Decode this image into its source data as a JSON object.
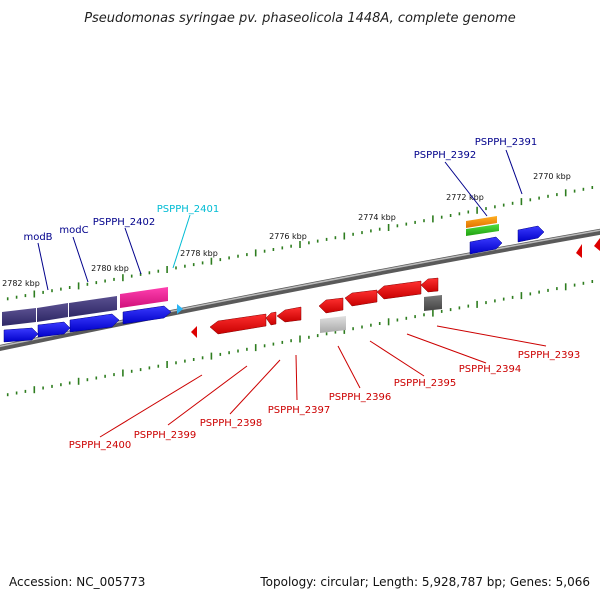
{
  "title": "Pseudomonas syringae pv. phaseolicola 1448A, complete genome",
  "footer": {
    "accession": "Accession: NC_005773",
    "summary": "Topology: circular; Length: 5,928,787 bp; Genes: 5,066"
  },
  "tick_labels": [
    "2770 kbp",
    "2772 kbp",
    "2774 kbp",
    "2776 kbp",
    "2778 kbp",
    "2780 kbp",
    "2782 kbp"
  ],
  "forward_labels": [
    "PSPPH_2391",
    "PSPPH_2392",
    "PSPPH_2401",
    "PSPPH_2402",
    "modC",
    "modB"
  ],
  "reverse_labels": [
    "PSPPH_2393",
    "PSPPH_2394",
    "PSPPH_2395",
    "PSPPH_2396",
    "PSPPH_2397",
    "PSPPH_2398",
    "PSPPH_2399",
    "PSPPH_2400"
  ],
  "colors": {
    "backbone": "#777777",
    "forward_gene": "#0000ee",
    "reverse_gene": "#ee0000",
    "forward_label": "#00008b",
    "reverse_label": "#cc0000",
    "highlight_label": "#00bcd4",
    "tick": "#2e7d1f"
  }
}
